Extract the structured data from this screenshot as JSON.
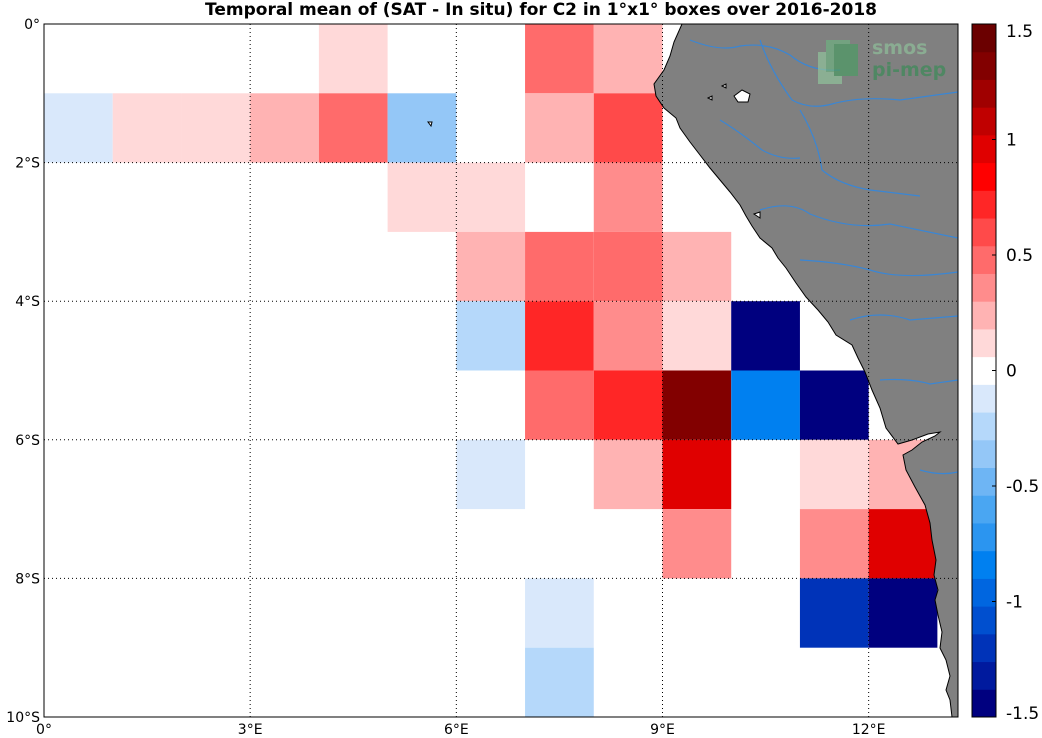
{
  "title": "Temporal mean of (SAT - In situ) for C2 in 1°x1° boxes over 2016-2018",
  "logo": {
    "line1": "smos",
    "line2": "pi-mep"
  },
  "axes": {
    "x_ticks": [
      {
        "lon": 0,
        "label": "0°"
      },
      {
        "lon": 3,
        "label": "3°E"
      },
      {
        "lon": 6,
        "label": "6°E"
      },
      {
        "lon": 9,
        "label": "9°E"
      },
      {
        "lon": 12,
        "label": "12°E"
      }
    ],
    "y_ticks": [
      {
        "lat": 0,
        "label": "0°"
      },
      {
        "lat": -2,
        "label": "2°S"
      },
      {
        "lat": -4,
        "label": "4°S"
      },
      {
        "lat": -6,
        "label": "6°S"
      },
      {
        "lat": -8,
        "label": "8°S"
      },
      {
        "lat": -10,
        "label": "10°S"
      }
    ]
  },
  "colorbar": {
    "range": [
      -1.5,
      1.5
    ],
    "ticks": [
      {
        "value": 1.5,
        "label": "1.5"
      },
      {
        "value": 1,
        "label": "1"
      },
      {
        "value": 0.5,
        "label": "0.5"
      },
      {
        "value": 0,
        "label": "0"
      },
      {
        "value": -0.5,
        "label": "-0.5"
      },
      {
        "value": -1,
        "label": "-1"
      },
      {
        "value": -1.5,
        "label": "-1.5"
      }
    ]
  },
  "chart_data": {
    "type": "heatmap",
    "title": "Temporal mean of (SAT - In situ) for C2 in 1°x1° boxes over 2016-2018",
    "xlabel": "",
    "ylabel": "",
    "xlim": [
      0,
      13.3
    ],
    "ylim": [
      -10,
      0
    ],
    "grid": true,
    "cell_size_deg": 1,
    "cells": [
      {
        "lon": 4.5,
        "lat": -0.5,
        "value": 0.1
      },
      {
        "lon": 7.5,
        "lat": -0.5,
        "value": 0.45
      },
      {
        "lon": 8.5,
        "lat": -0.5,
        "value": 0.2
      },
      {
        "lon": 0.5,
        "lat": -1.5,
        "value": -0.1
      },
      {
        "lon": 1.5,
        "lat": -1.5,
        "value": 0.1
      },
      {
        "lon": 2.5,
        "lat": -1.5,
        "value": 0.1
      },
      {
        "lon": 3.5,
        "lat": -1.5,
        "value": 0.25
      },
      {
        "lon": 4.5,
        "lat": -1.5,
        "value": 0.45
      },
      {
        "lon": 5.5,
        "lat": -1.5,
        "value": -0.4
      },
      {
        "lon": 7.5,
        "lat": -1.5,
        "value": 0.2
      },
      {
        "lon": 8.5,
        "lat": -1.5,
        "value": 0.6
      },
      {
        "lon": 5.5,
        "lat": -2.5,
        "value": 0.1
      },
      {
        "lon": 6.5,
        "lat": -2.5,
        "value": 0.1
      },
      {
        "lon": 8.5,
        "lat": -2.5,
        "value": 0.35
      },
      {
        "lon": 6.5,
        "lat": -3.5,
        "value": 0.2
      },
      {
        "lon": 7.5,
        "lat": -3.5,
        "value": 0.45
      },
      {
        "lon": 8.5,
        "lat": -3.5,
        "value": 0.45
      },
      {
        "lon": 9.5,
        "lat": -3.5,
        "value": 0.2
      },
      {
        "lon": 6.5,
        "lat": -4.5,
        "value": -0.25
      },
      {
        "lon": 7.5,
        "lat": -4.5,
        "value": 0.75
      },
      {
        "lon": 8.5,
        "lat": -4.5,
        "value": 0.35
      },
      {
        "lon": 9.5,
        "lat": -4.5,
        "value": 0.1
      },
      {
        "lon": 10.5,
        "lat": -4.5,
        "value": -1.5
      },
      {
        "lon": 7.5,
        "lat": -5.5,
        "value": 0.45
      },
      {
        "lon": 8.5,
        "lat": -5.5,
        "value": 0.75
      },
      {
        "lon": 9.5,
        "lat": -5.5,
        "value": 1.3
      },
      {
        "lon": 10.5,
        "lat": -5.5,
        "value": -0.8
      },
      {
        "lon": 11.5,
        "lat": -5.5,
        "value": -1.5
      },
      {
        "lon": 6.5,
        "lat": -6.5,
        "value": -0.1
      },
      {
        "lon": 8.5,
        "lat": -6.5,
        "value": 0.25
      },
      {
        "lon": 9.5,
        "lat": -6.5,
        "value": 0.9
      },
      {
        "lon": 11.5,
        "lat": -6.5,
        "value": 0.1
      },
      {
        "lon": 12.5,
        "lat": -6.5,
        "value": 0.25
      },
      {
        "lon": 9.5,
        "lat": -7.5,
        "value": 0.35
      },
      {
        "lon": 11.5,
        "lat": -7.5,
        "value": 0.35
      },
      {
        "lon": 12.5,
        "lat": -7.5,
        "value": 0.9
      },
      {
        "lon": 7.5,
        "lat": -8.5,
        "value": -0.1
      },
      {
        "lon": 11.5,
        "lat": -8.5,
        "value": -1.2
      },
      {
        "lon": 12.5,
        "lat": -8.5,
        "value": -1.5
      },
      {
        "lon": 7.5,
        "lat": -9.5,
        "value": -0.25
      }
    ]
  },
  "colors": {
    "land": "#808080",
    "rivers": "#3a86d4",
    "grid": "#000000",
    "colormap_neg_to_pos": [
      "#00007f",
      "#001a9e",
      "#0033b8",
      "#004fcf",
      "#0066e0",
      "#0080f0",
      "#2b95f0",
      "#4aa6f2",
      "#6eb5f4",
      "#94c7f7",
      "#b5d8fa",
      "#d9e8fb",
      "#ffffff",
      "#ffd9d9",
      "#ffb3b3",
      "#ff8c8c",
      "#ff6b6b",
      "#ff4a4a",
      "#ff2626",
      "#ff0000",
      "#e00000",
      "#c00000",
      "#a00000",
      "#820000",
      "#6b0000"
    ]
  }
}
